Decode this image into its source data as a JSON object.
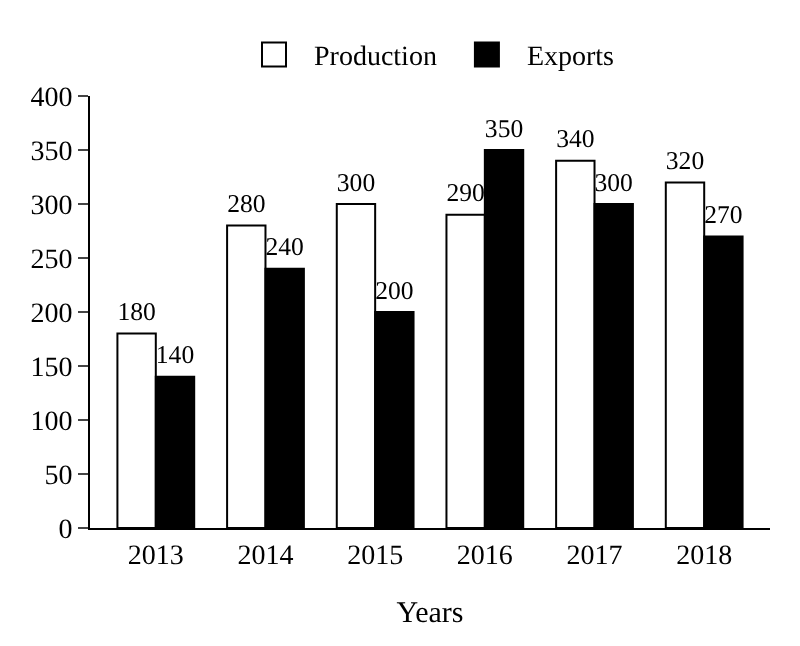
{
  "chart_data": {
    "type": "bar",
    "xlabel": "Years",
    "categories": [
      "2013",
      "2014",
      "2015",
      "2016",
      "2017",
      "2018"
    ],
    "series": [
      {
        "name": "Production",
        "color": "#ffffff",
        "values": [
          180,
          280,
          300,
          290,
          340,
          320
        ]
      },
      {
        "name": "Exports",
        "color": "#000000",
        "values": [
          140,
          240,
          200,
          350,
          300,
          270
        ]
      }
    ],
    "ylim": [
      0,
      400
    ],
    "yticks": [
      0,
      50,
      100,
      150,
      200,
      250,
      300,
      350,
      400
    ],
    "data_labels": true,
    "grid": false,
    "legend": "top"
  }
}
